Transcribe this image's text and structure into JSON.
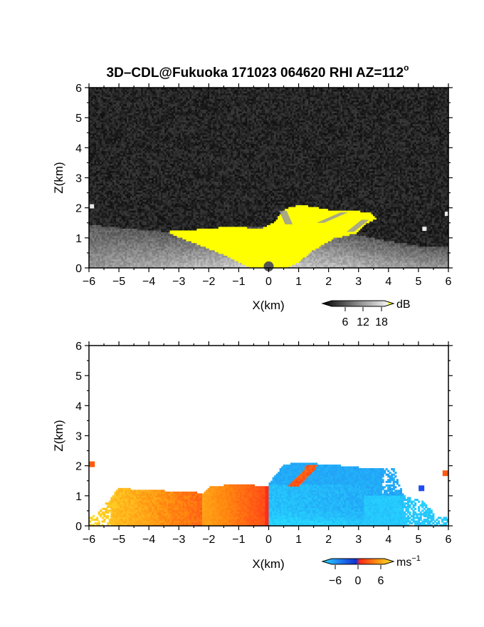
{
  "title": {
    "main": "3D–CDL@Fukuoka 171023 064620 RHI AZ=112",
    "degree": "o"
  },
  "colors": {
    "noise_dark": "#1b1b1b",
    "highlight": "#ffff00",
    "vel_neg_strong": "#0f3fe0",
    "vel_neg_weak": "#27d8ff",
    "vel_zero": "#ff3b1a",
    "vel_pos": "#ffd400",
    "vel_pos_weak": "#fff27a"
  },
  "chart_data": [
    {
      "type": "heatmap",
      "name": "reflectivity",
      "xlabel": "X(km)",
      "ylabel": "Z(km)",
      "xlim": [
        -6,
        6
      ],
      "ylim": [
        0,
        6
      ],
      "xticks": [
        "−6",
        "−5",
        "−4",
        "−3",
        "−2",
        "−1",
        "0",
        "1",
        "2",
        "3",
        "4",
        "5",
        "6"
      ],
      "yticks": [
        "0",
        "1",
        "2",
        "3",
        "4",
        "5",
        "6"
      ],
      "grid": false,
      "colorbar": {
        "unit": "dB",
        "ticks": [
          "6",
          "12",
          "18"
        ],
        "range": [
          0,
          20
        ],
        "scale": "gray-to-yellow",
        "placement": "bottom-right"
      },
      "features": {
        "boundary_layer_top_km": [
          [
            -6,
            1.45
          ],
          [
            -5,
            1.35
          ],
          [
            -4,
            1.25
          ],
          [
            -3,
            1.2
          ],
          [
            -2,
            1.25
          ],
          [
            -1,
            1.35
          ],
          [
            0,
            1.4
          ],
          [
            1,
            1.45
          ],
          [
            2,
            1.35
          ],
          [
            3,
            1.1
          ],
          [
            4,
            0.9
          ],
          [
            5,
            0.75
          ],
          [
            6,
            0.7
          ]
        ],
        "saturated_region_outline_km": [
          [
            -3.3,
            1.25
          ],
          [
            -2.2,
            1.3
          ],
          [
            -1.2,
            1.4
          ],
          [
            -0.3,
            1.3
          ],
          [
            0.2,
            1.55
          ],
          [
            0.4,
            1.8
          ],
          [
            0.6,
            2.0
          ],
          [
            1.0,
            2.1
          ],
          [
            1.5,
            2.05
          ],
          [
            2.0,
            1.95
          ],
          [
            2.5,
            1.9
          ],
          [
            3.0,
            1.9
          ],
          [
            3.4,
            1.85
          ],
          [
            3.6,
            1.65
          ],
          [
            3.2,
            1.45
          ],
          [
            2.9,
            1.15
          ],
          [
            2.2,
            1.0
          ],
          [
            1.5,
            0.6
          ],
          [
            1.0,
            0.2
          ],
          [
            0.6,
            0.0
          ],
          [
            -0.6,
            0.0
          ],
          [
            -1.4,
            0.4
          ],
          [
            -2.4,
            0.8
          ],
          [
            -3.3,
            1.15
          ]
        ],
        "isolated_echoes_km": [
          [
            -5.9,
            2.05
          ],
          [
            5.2,
            1.3
          ],
          [
            5.95,
            1.8
          ]
        ]
      }
    },
    {
      "type": "heatmap",
      "name": "doppler_velocity",
      "xlabel": "X(km)",
      "ylabel": "Z(km)",
      "xlim": [
        -6,
        6
      ],
      "ylim": [
        0,
        6
      ],
      "xticks": [
        "−6",
        "−5",
        "−4",
        "−3",
        "−2",
        "−1",
        "0",
        "1",
        "2",
        "3",
        "4",
        "5",
        "6"
      ],
      "yticks": [
        "0",
        "1",
        "2",
        "3",
        "4",
        "5",
        "6"
      ],
      "grid": false,
      "colorbar": {
        "unit": "ms",
        "unit_exponent": "−1",
        "ticks": [
          "−6",
          "0",
          "6"
        ],
        "range": [
          -8,
          8
        ],
        "scale": "cyan-blue-red-yellow",
        "placement": "bottom-right"
      },
      "features": {
        "echo_top_left_km": [
          [
            -5.9,
            0.3
          ],
          [
            -5.0,
            1.25
          ],
          [
            -4.0,
            1.2
          ],
          [
            -2.2,
            1.1
          ],
          [
            -2.0,
            1.3
          ],
          [
            -1.0,
            1.4
          ],
          [
            0.0,
            1.3
          ]
        ],
        "echo_top_right_km": [
          [
            0.0,
            1.4
          ],
          [
            0.5,
            2.05
          ],
          [
            1.0,
            2.1
          ],
          [
            2.0,
            2.05
          ],
          [
            3.0,
            1.95
          ],
          [
            3.5,
            1.9
          ],
          [
            4.2,
            1.9
          ],
          [
            4.5,
            1.0
          ],
          [
            5.2,
            0.8
          ],
          [
            5.6,
            0.3
          ]
        ],
        "velocity_left_side_ms": 5,
        "velocity_right_side_ms": -6,
        "positive_cell_km": [
          [
            0.8,
            1.3
          ],
          [
            1.5,
            2.05
          ]
        ],
        "isolated_echoes_km": [
          [
            -5.9,
            2.05
          ],
          [
            5.9,
            1.75
          ],
          [
            5.1,
            1.25
          ]
        ]
      }
    }
  ]
}
